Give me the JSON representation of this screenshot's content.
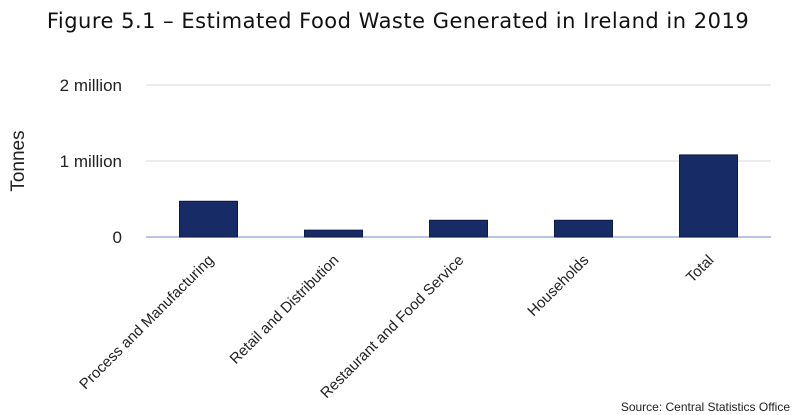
{
  "chart_data": {
    "type": "bar",
    "title": "Figure 5.1 – Estimated Food Waste Generated in Ireland in 2019",
    "ylabel": "Tonnes",
    "xlabel": "",
    "categories": [
      "Process and Manufacturing",
      "Retail and Distribution",
      "Restaurant and Food Service",
      "Households",
      "Total"
    ],
    "values": [
      470000,
      90000,
      220000,
      220000,
      1080000
    ],
    "ylim": [
      0,
      2000000
    ],
    "yticks": [
      {
        "value": 0,
        "label": "0"
      },
      {
        "value": 1000000,
        "label": "1 million"
      },
      {
        "value": 2000000,
        "label": "2 million"
      }
    ],
    "bar_color": "#172b66",
    "grid": true,
    "legend": "none"
  },
  "source": "Source: Central Statistics Office"
}
